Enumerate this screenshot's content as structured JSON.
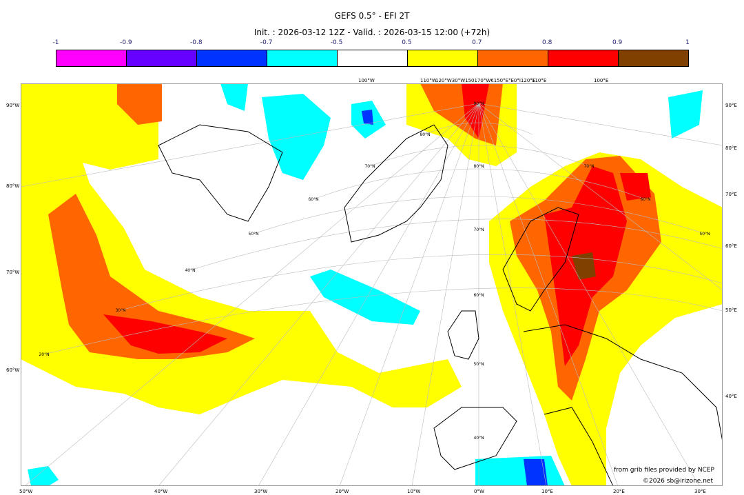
{
  "title": "GEFS 0.5° - EFI 2T",
  "subtitle": "Init. : 2026-03-12 12Z - Valid. : 2026-03-15 12:00 (+72h)",
  "colorbar": {
    "labels": [
      "-1",
      "-0.9",
      "-0.8",
      "-0.7",
      "-0.5",
      "0.5",
      "0.7",
      "0.8",
      "0.9",
      "1"
    ],
    "colors": [
      "#ff00ff",
      "#6600ff",
      "#0033ff",
      "#00ffff",
      "#ffffff",
      "#ffff00",
      "#ff6600",
      "#ff0000",
      "#804000"
    ]
  },
  "axes": {
    "top": [
      "100°W",
      "110°W",
      "120°W30°W150170°W€150°E°E0°I120°E",
      "110°E",
      "100°E"
    ],
    "bottom": [
      "50°W",
      "40°W",
      "30°W",
      "20°W",
      "10°W",
      "0°W",
      "10°E",
      "20°E",
      "30°E"
    ],
    "left": [
      "90°W",
      "80°W",
      "70°W",
      "60°W"
    ],
    "right": [
      "90°E",
      "80°E",
      "70°E",
      "60°E",
      "50°E",
      "40°E"
    ],
    "lat_labels": [
      "90°N",
      "80°N",
      "70°N",
      "60°N",
      "50°N",
      "40°N",
      "30°N",
      "20°N",
      "80°N",
      "70°N",
      "60°N",
      "50°N",
      "40°N",
      "70°N",
      "60°N",
      "50°N"
    ]
  },
  "credits": {
    "source": "from grib files provided by NCEP",
    "copyright": "©2026 sb@irizone.net"
  }
}
